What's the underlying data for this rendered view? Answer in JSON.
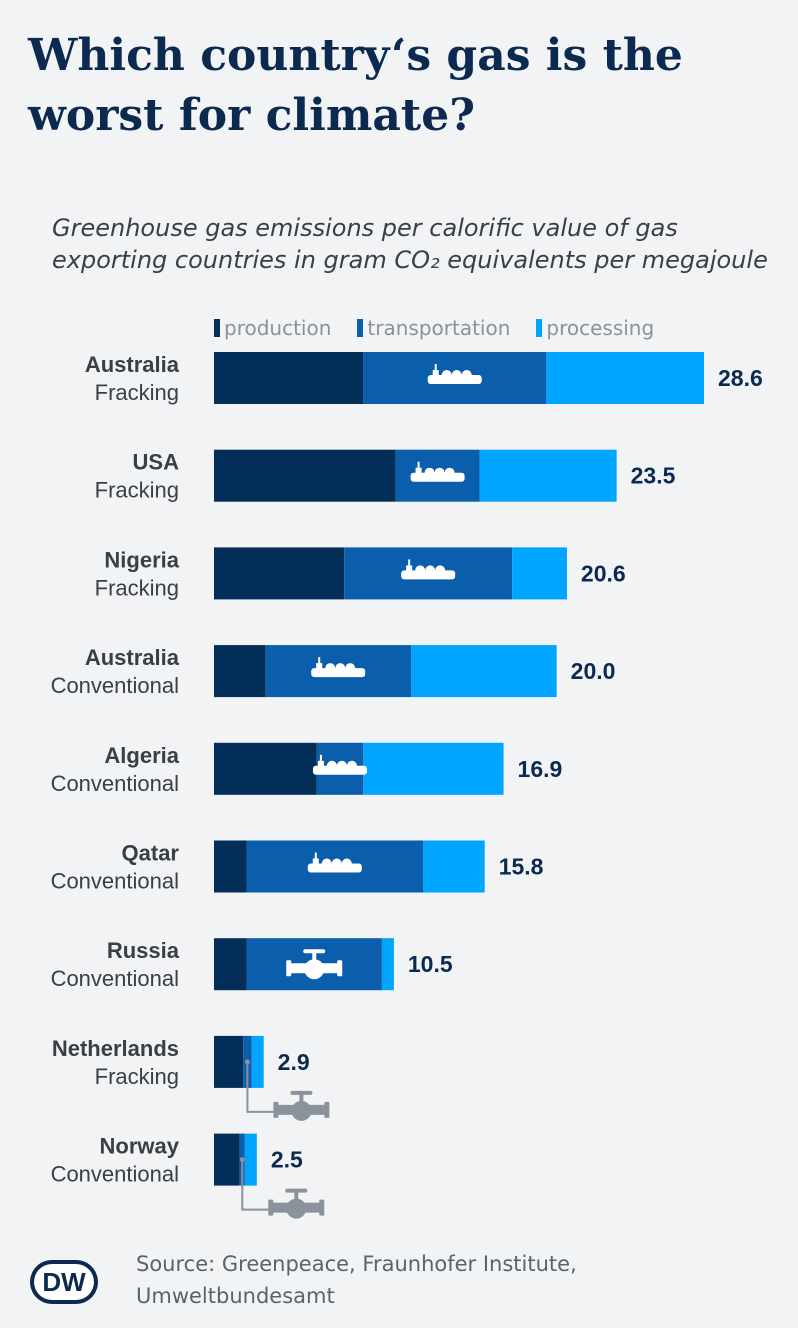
{
  "title": "Which country‘s gas is the worst for climate?",
  "subtitle": "Greenhouse gas emissions per calorific value of gas exporting countries in gram CO₂ equivalents per megajoule",
  "source": "Source: Greenpeace, Fraunhofer Institute, Umweltbundesamt",
  "logo_text": "DW",
  "colors": {
    "production": "#022e57",
    "transportation": "#0b5eac",
    "processing": "#00a5ff",
    "background": "#f1f3f5",
    "title": "#0c2a4f",
    "icon_gray": "#8a929b"
  },
  "legend": [
    {
      "key": "production",
      "label": "production"
    },
    {
      "key": "transportation",
      "label": "transportation"
    },
    {
      "key": "processing",
      "label": "processing"
    }
  ],
  "chart_data": {
    "type": "bar",
    "orientation": "horizontal",
    "stacked": true,
    "legend_position": "top",
    "grid": false,
    "xlim": [
      0,
      28.6
    ],
    "categories": [
      {
        "country": "Australia",
        "method": "Fracking"
      },
      {
        "country": "USA",
        "method": "Fracking"
      },
      {
        "country": "Nigeria",
        "method": "Fracking"
      },
      {
        "country": "Australia",
        "method": "Conventional"
      },
      {
        "country": "Algeria",
        "method": "Conventional"
      },
      {
        "country": "Qatar",
        "method": "Conventional"
      },
      {
        "country": "Russia",
        "method": "Conventional"
      },
      {
        "country": "Netherlands",
        "method": "Fracking"
      },
      {
        "country": "Norway",
        "method": "Conventional"
      }
    ],
    "series": [
      {
        "name": "production",
        "values": [
          8.7,
          10.6,
          7.6,
          3.0,
          6.0,
          1.9,
          1.9,
          1.7,
          1.5
        ]
      },
      {
        "name": "transportation",
        "values": [
          10.7,
          4.9,
          9.8,
          8.5,
          2.7,
          10.3,
          7.9,
          0.5,
          0.3
        ]
      },
      {
        "name": "processing",
        "values": [
          9.2,
          8.0,
          3.2,
          8.5,
          8.2,
          3.6,
          0.7,
          0.7,
          0.7
        ]
      }
    ],
    "totals": [
      "28.6",
      "23.5",
      "20.6",
      "20.0",
      "16.9",
      "15.8",
      "10.5",
      "2.9",
      "2.5"
    ],
    "transport_icon": [
      "ship-icon",
      "ship-icon",
      "ship-icon",
      "ship-icon",
      "ship-icon",
      "ship-icon",
      "pipeline-icon",
      "pipeline-icon",
      "pipeline-icon"
    ]
  }
}
